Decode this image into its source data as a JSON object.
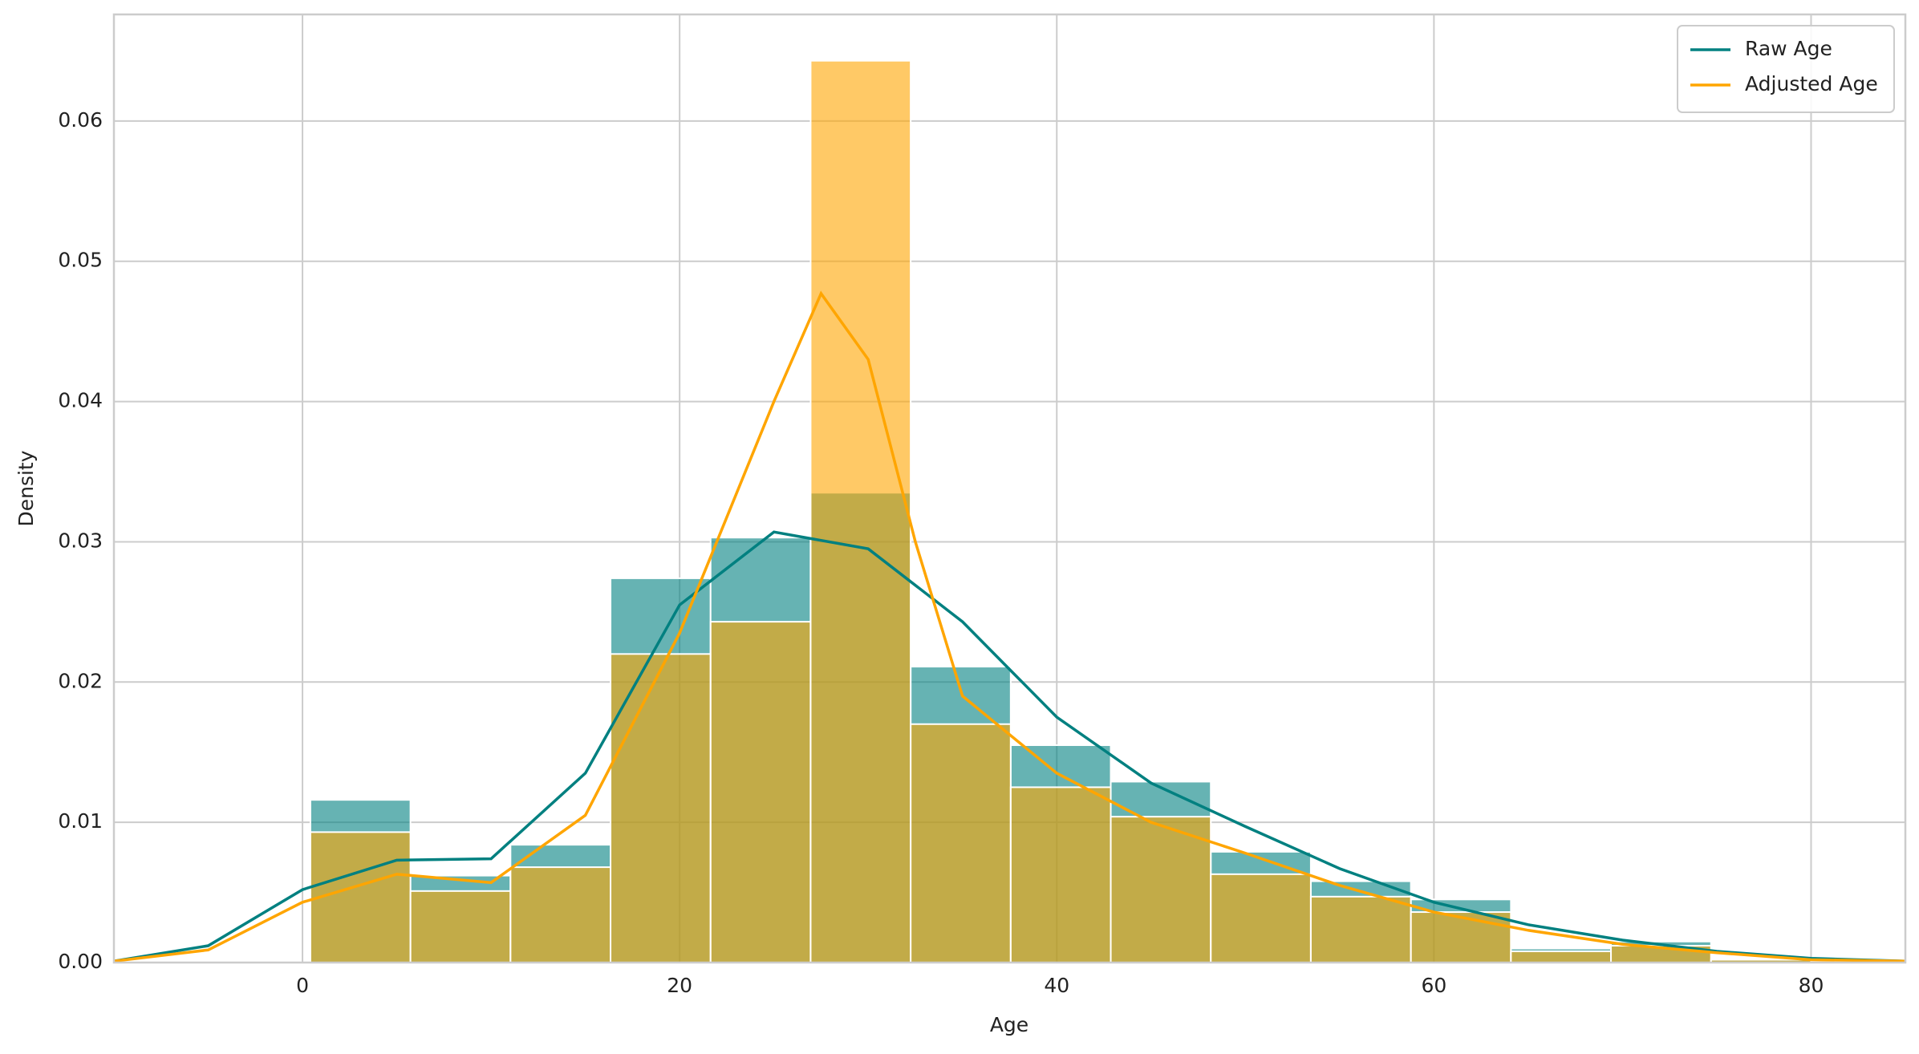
{
  "chart_data": {
    "type": "histogram",
    "xlabel": "Age",
    "ylabel": "Density",
    "bins": [
      0.42,
      5.725,
      11.03,
      16.336,
      21.641,
      26.946,
      32.251,
      37.557,
      42.862,
      48.167,
      53.472,
      58.778,
      64.083,
      69.388,
      74.694,
      79.999
    ],
    "series": [
      {
        "name": "Raw Age",
        "color": "#008080",
        "values": [
          0.0116,
          0.0062,
          0.0084,
          0.0274,
          0.0303,
          0.0335,
          0.0211,
          0.0155,
          0.0129,
          0.0079,
          0.0058,
          0.0045,
          0.001,
          0.0015,
          0.0002
        ],
        "kde_x": [
          -10,
          -5,
          0,
          5,
          10,
          15,
          20,
          25,
          30,
          35,
          40,
          45,
          50,
          55,
          60,
          65,
          70,
          75,
          80,
          85
        ],
        "kde_values": [
          0.0001,
          0.0012,
          0.0052,
          0.0073,
          0.0074,
          0.0135,
          0.0255,
          0.0307,
          0.0295,
          0.0243,
          0.0175,
          0.0128,
          0.0097,
          0.0067,
          0.0043,
          0.0027,
          0.0016,
          0.0008,
          0.0003,
          0.0001
        ]
      },
      {
        "name": "Adjusted Age",
        "color": "#ffa500",
        "values": [
          0.0093,
          0.0051,
          0.0068,
          0.022,
          0.0243,
          0.0643,
          0.017,
          0.0125,
          0.0104,
          0.0063,
          0.0047,
          0.0036,
          0.0008,
          0.0012,
          0.0002
        ],
        "kde_x": [
          -10,
          -5,
          0,
          5,
          10,
          15,
          20,
          25,
          27.5,
          30,
          32.5,
          35,
          40,
          45,
          50,
          55,
          60,
          65,
          70,
          75,
          80,
          85
        ],
        "kde_values": [
          0.0001,
          0.0009,
          0.0043,
          0.0063,
          0.0057,
          0.0105,
          0.0235,
          0.04,
          0.0477,
          0.043,
          0.03,
          0.019,
          0.0135,
          0.01,
          0.0078,
          0.0055,
          0.0036,
          0.0023,
          0.0013,
          0.0007,
          0.0002,
          0.0001
        ]
      }
    ],
    "xlim": [
      -10,
      85
    ],
    "ylim": [
      0,
      0.0676
    ],
    "xticks": [
      0,
      20,
      40,
      60,
      80
    ],
    "yticks": [
      {
        "value": 0,
        "label": "0.00"
      },
      0.01,
      0.02,
      0.03,
      0.04,
      0.05,
      0.06
    ],
    "grid": true,
    "legend": "upper right"
  }
}
